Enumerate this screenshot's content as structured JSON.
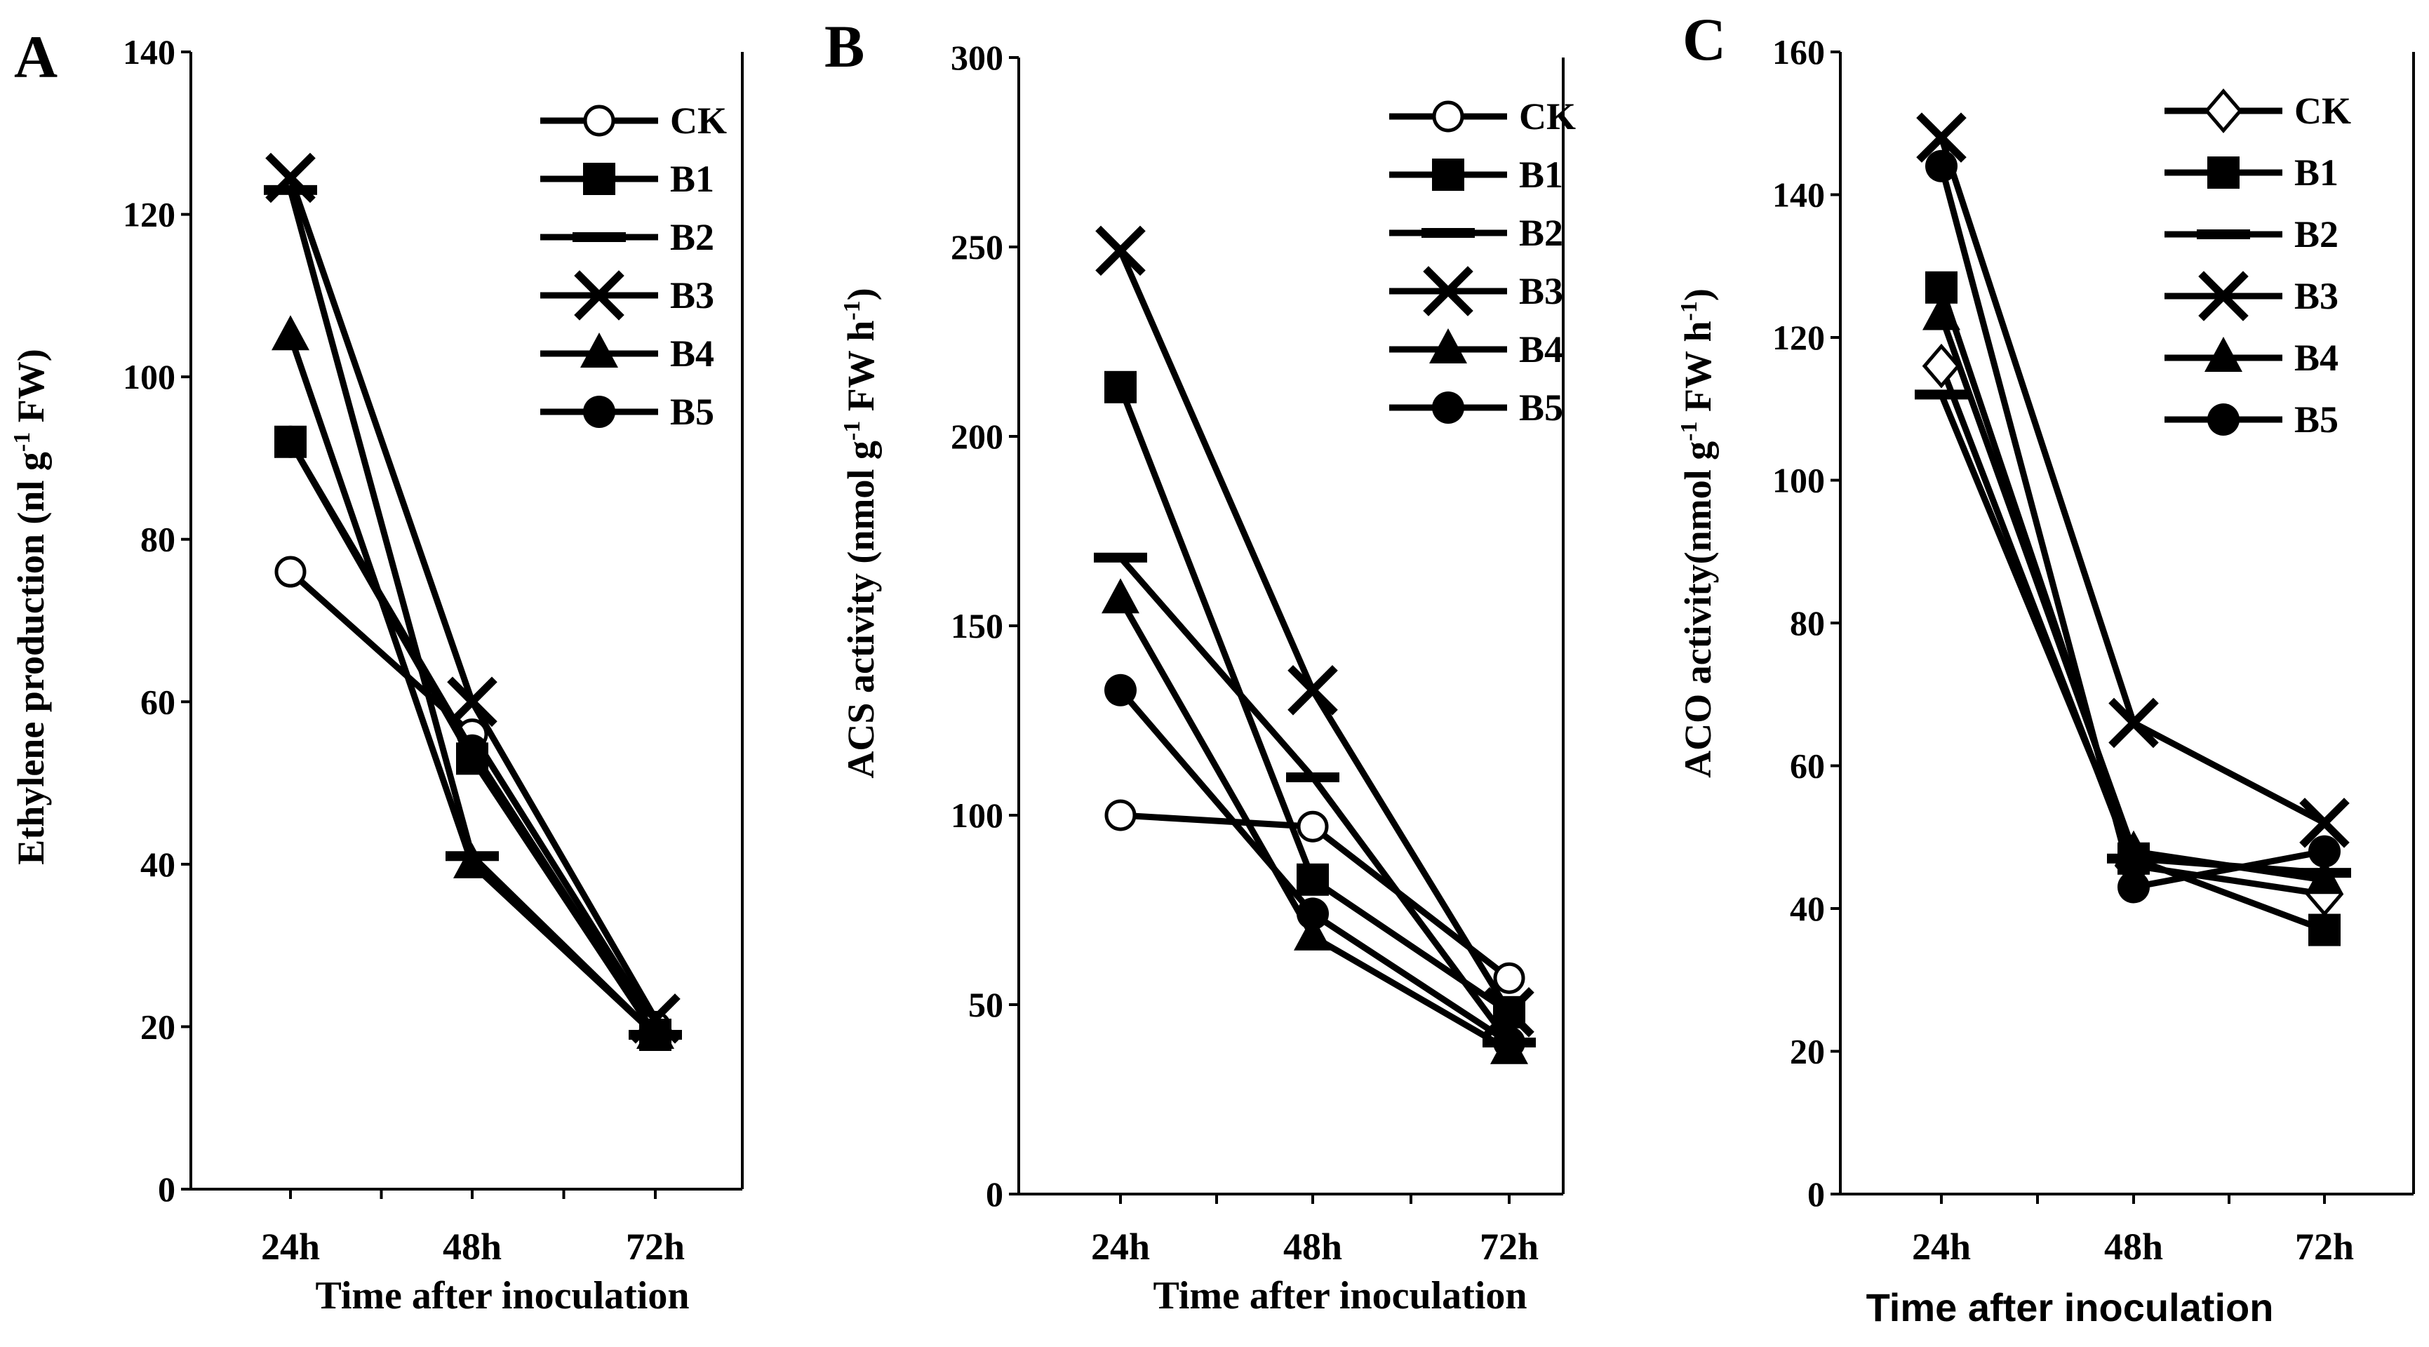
{
  "chart_data": [
    {
      "panel_letter": "A",
      "type": "line",
      "categories": [
        "24h",
        "48h",
        "72h"
      ],
      "ylabel_main": "Ethylene production (nl g",
      "ylabel_sup": "-1",
      "ylabel_end": " FW)",
      "xlabel": "Time after inoculation",
      "ylim": [
        0,
        140
      ],
      "ytick_step": 20,
      "yticks": [
        "0",
        "20",
        "40",
        "60",
        "80",
        "100",
        "120",
        "140"
      ],
      "series": [
        {
          "name": "CK",
          "marker": "open-circle",
          "values": [
            76,
            56,
            20
          ]
        },
        {
          "name": "B1",
          "marker": "square",
          "values": [
            92,
            53,
            19
          ]
        },
        {
          "name": "B2",
          "marker": "dash",
          "values": [
            123,
            41,
            19
          ]
        },
        {
          "name": "B3",
          "marker": "x",
          "values": [
            124.5,
            60,
            21
          ]
        },
        {
          "name": "B4",
          "marker": "triangle",
          "values": [
            105,
            40,
            19
          ]
        },
        {
          "name": "B5",
          "marker": "circle",
          "values": [
            92,
            54,
            19
          ]
        }
      ],
      "legend_position": "top-right",
      "grid": false
    },
    {
      "panel_letter": "B",
      "type": "line",
      "categories": [
        "24h",
        "48h",
        "72h"
      ],
      "ylabel_main": "ACS activity (nmol g",
      "ylabel_sup": "-1",
      "ylabel_end": " FW h",
      "ylabel_sup2": "-1",
      "ylabel_end2": ")",
      "xlabel": "Time after inoculation",
      "ylim": [
        0,
        300
      ],
      "ytick_step": 50,
      "yticks": [
        "0",
        "50",
        "100",
        "150",
        "200",
        "250",
        "300"
      ],
      "series": [
        {
          "name": "CK",
          "marker": "open-circle",
          "values": [
            100,
            97,
            57
          ]
        },
        {
          "name": "B1",
          "marker": "square",
          "values": [
            213,
            83,
            48
          ]
        },
        {
          "name": "B2",
          "marker": "dash",
          "values": [
            168,
            110,
            40
          ]
        },
        {
          "name": "B3",
          "marker": "x",
          "values": [
            249,
            133,
            48
          ]
        },
        {
          "name": "B4",
          "marker": "triangle",
          "values": [
            157,
            68,
            38
          ]
        },
        {
          "name": "B5",
          "marker": "circle",
          "values": [
            133,
            74,
            40
          ]
        }
      ],
      "legend_position": "top-right",
      "grid": false
    },
    {
      "panel_letter": "C",
      "type": "line",
      "categories": [
        "24h",
        "48h",
        "72h"
      ],
      "ylabel_main": "ACO activity(nmol g",
      "ylabel_sup": "-1",
      "ylabel_end": " FW h",
      "ylabel_sup2": "-1",
      "ylabel_end2": ")",
      "xlabel": "Time after inoculation",
      "ylim": [
        0,
        160
      ],
      "ytick_step": 20,
      "yticks": [
        "0",
        "20",
        "40",
        "60",
        "80",
        "100",
        "120",
        "140",
        "160"
      ],
      "series": [
        {
          "name": "CK",
          "marker": "open-diamond",
          "values": [
            116,
            46,
            42
          ]
        },
        {
          "name": "B1",
          "marker": "square",
          "values": [
            127,
            47,
            37
          ]
        },
        {
          "name": "B2",
          "marker": "dash",
          "values": [
            112,
            47,
            45
          ]
        },
        {
          "name": "B3",
          "marker": "x",
          "values": [
            148,
            66,
            52
          ]
        },
        {
          "name": "B4",
          "marker": "triangle",
          "values": [
            123,
            48,
            44
          ]
        },
        {
          "name": "B5",
          "marker": "circle",
          "values": [
            144,
            43,
            48
          ]
        }
      ],
      "legend_position": "top-right",
      "grid": false
    }
  ]
}
